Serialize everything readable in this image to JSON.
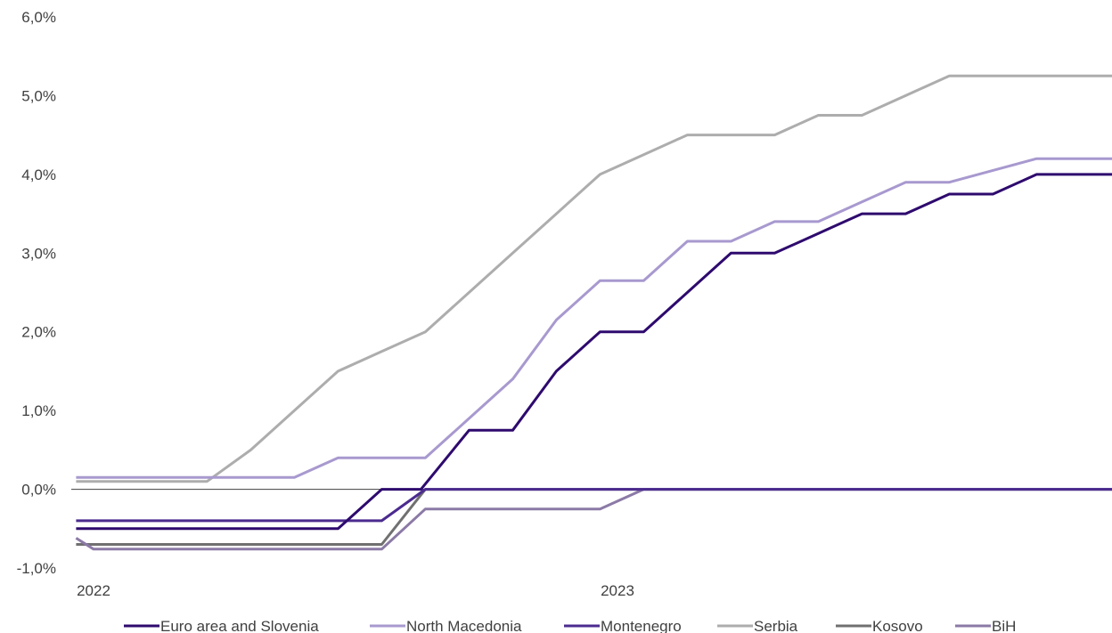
{
  "chart_data": {
    "type": "line",
    "title": "",
    "xlabel": "",
    "ylabel": "",
    "ylim": [
      -1.0,
      6.0
    ],
    "yticks": [
      -1.0,
      0.0,
      1.0,
      2.0,
      3.0,
      4.0,
      5.0,
      6.0
    ],
    "ytick_labels": [
      "-1,0%",
      "0,0%",
      "1,0%",
      "2,0%",
      "3,0%",
      "4,0%",
      "5,0%",
      "6,0%"
    ],
    "xlim": [
      0,
      23.6
    ],
    "xticks": [
      0,
      12
    ],
    "xtick_labels": [
      "2022",
      "2023"
    ],
    "grid": false,
    "legend_position": "bottom",
    "series": [
      {
        "name": "Euro area and Slovenia",
        "color": "#2e0a6e",
        "points": [
          [
            -0.4,
            -0.5
          ],
          [
            0,
            -0.5
          ],
          [
            5.6,
            -0.5
          ],
          [
            6.6,
            0.0
          ],
          [
            7.5,
            0.0
          ],
          [
            8.6,
            0.75
          ],
          [
            9.6,
            0.75
          ],
          [
            10.6,
            1.5
          ],
          [
            11.6,
            2.0
          ],
          [
            12.6,
            2.0
          ],
          [
            13.6,
            2.5
          ],
          [
            14.6,
            3.0
          ],
          [
            15.6,
            3.0
          ],
          [
            16.6,
            3.25
          ],
          [
            17.6,
            3.5
          ],
          [
            18.6,
            3.5
          ],
          [
            19.6,
            3.75
          ],
          [
            20.6,
            3.75
          ],
          [
            21.6,
            4.0
          ],
          [
            22.6,
            4.0
          ],
          [
            23.6,
            4.0
          ]
        ]
      },
      {
        "name": "North Macedonia",
        "color": "#a899cf",
        "points": [
          [
            -0.4,
            0.15
          ],
          [
            0,
            0.15
          ],
          [
            4.6,
            0.15
          ],
          [
            5.6,
            0.4
          ],
          [
            6.6,
            0.4
          ],
          [
            7.6,
            0.4
          ],
          [
            8.6,
            0.9
          ],
          [
            9.6,
            1.4
          ],
          [
            10.6,
            2.15
          ],
          [
            11.6,
            2.65
          ],
          [
            12.6,
            2.65
          ],
          [
            13.6,
            3.15
          ],
          [
            14.6,
            3.15
          ],
          [
            15.6,
            3.4
          ],
          [
            16.6,
            3.4
          ],
          [
            17.6,
            3.65
          ],
          [
            18.6,
            3.9
          ],
          [
            19.6,
            3.9
          ],
          [
            20.6,
            4.05
          ],
          [
            21.6,
            4.2
          ],
          [
            22.6,
            4.2
          ],
          [
            23.6,
            4.2
          ]
        ]
      },
      {
        "name": "Montenegro",
        "color": "#4b2b8f",
        "points": [
          [
            -0.4,
            -0.4
          ],
          [
            0,
            -0.4
          ],
          [
            6.6,
            -0.4
          ],
          [
            7.6,
            0.0
          ],
          [
            23.6,
            0.0
          ]
        ]
      },
      {
        "name": "Serbia",
        "color": "#adadad",
        "points": [
          [
            -0.4,
            0.1
          ],
          [
            0,
            0.1
          ],
          [
            2.6,
            0.1
          ],
          [
            3.6,
            0.5
          ],
          [
            4.6,
            1.0
          ],
          [
            5.6,
            1.5
          ],
          [
            6.6,
            1.75
          ],
          [
            7.6,
            2.0
          ],
          [
            8.6,
            2.5
          ],
          [
            9.6,
            3.0
          ],
          [
            10.6,
            3.5
          ],
          [
            11.6,
            4.0
          ],
          [
            12.6,
            4.25
          ],
          [
            13.6,
            4.5
          ],
          [
            14.6,
            4.5
          ],
          [
            15.6,
            4.5
          ],
          [
            16.6,
            4.75
          ],
          [
            17.6,
            4.75
          ],
          [
            18.6,
            5.0
          ],
          [
            19.6,
            5.25
          ],
          [
            20.6,
            5.25
          ],
          [
            21.6,
            5.25
          ],
          [
            22.6,
            5.25
          ],
          [
            23.6,
            5.25
          ]
        ]
      },
      {
        "name": "Kosovo",
        "color": "#707070",
        "points": [
          [
            -0.4,
            -0.7
          ],
          [
            0,
            -0.7
          ],
          [
            6.6,
            -0.7
          ],
          [
            7.6,
            0.0
          ],
          [
            23.6,
            0.0
          ]
        ]
      },
      {
        "name": "BiH",
        "color": "#8b7aa6",
        "points": [
          [
            -0.4,
            -0.62
          ],
          [
            0,
            -0.76
          ],
          [
            6.6,
            -0.76
          ],
          [
            7.6,
            -0.25
          ],
          [
            8.6,
            -0.25
          ],
          [
            11.6,
            -0.25
          ],
          [
            12.6,
            0.0
          ],
          [
            23.6,
            0.0
          ]
        ]
      }
    ]
  }
}
